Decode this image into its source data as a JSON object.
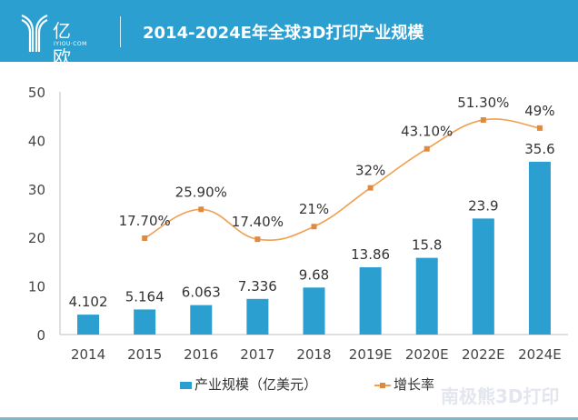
{
  "header": {
    "logo_text": "亿欧",
    "logo_sub": "IYIOU·COM",
    "title": "2014-2024E年全球3D打印产业规模"
  },
  "watermark": "南极熊3D打印",
  "colors": {
    "header": "#2a9fd0",
    "bar": "#2a9fd0",
    "line": "#f0a050",
    "marker": "#e08a40"
  },
  "chart_data": {
    "type": "bar",
    "title": "2014-2024E年全球3D打印产业规模",
    "categories": [
      "2014",
      "2015",
      "2016",
      "2017",
      "2018",
      "2019E",
      "2020E",
      "2022E",
      "2024E"
    ],
    "yticks": [
      "0",
      "10",
      "20",
      "30",
      "40",
      "50"
    ],
    "ylim": [
      0,
      50
    ],
    "grid": false,
    "legend_position": "bottom",
    "series": [
      {
        "name": "产业规模（亿美元）",
        "type": "bar",
        "values": [
          4.102,
          5.164,
          6.063,
          7.336,
          9.68,
          13.86,
          15.8,
          23.9,
          35.6
        ],
        "labels": [
          "4.102",
          "5.164",
          "6.063",
          "7.336",
          "9.68",
          "13.86",
          "15.8",
          "23.9",
          "35.6"
        ]
      },
      {
        "name": "增长率",
        "type": "line",
        "axis": "secondary",
        "values": [
          null,
          17.7,
          25.9,
          17.4,
          21,
          32,
          43.1,
          51.3,
          49
        ],
        "labels": [
          "",
          "17.70%",
          "25.90%",
          "17.40%",
          "21%",
          "32%",
          "43.10%",
          "51.30%",
          "49%"
        ]
      }
    ]
  }
}
